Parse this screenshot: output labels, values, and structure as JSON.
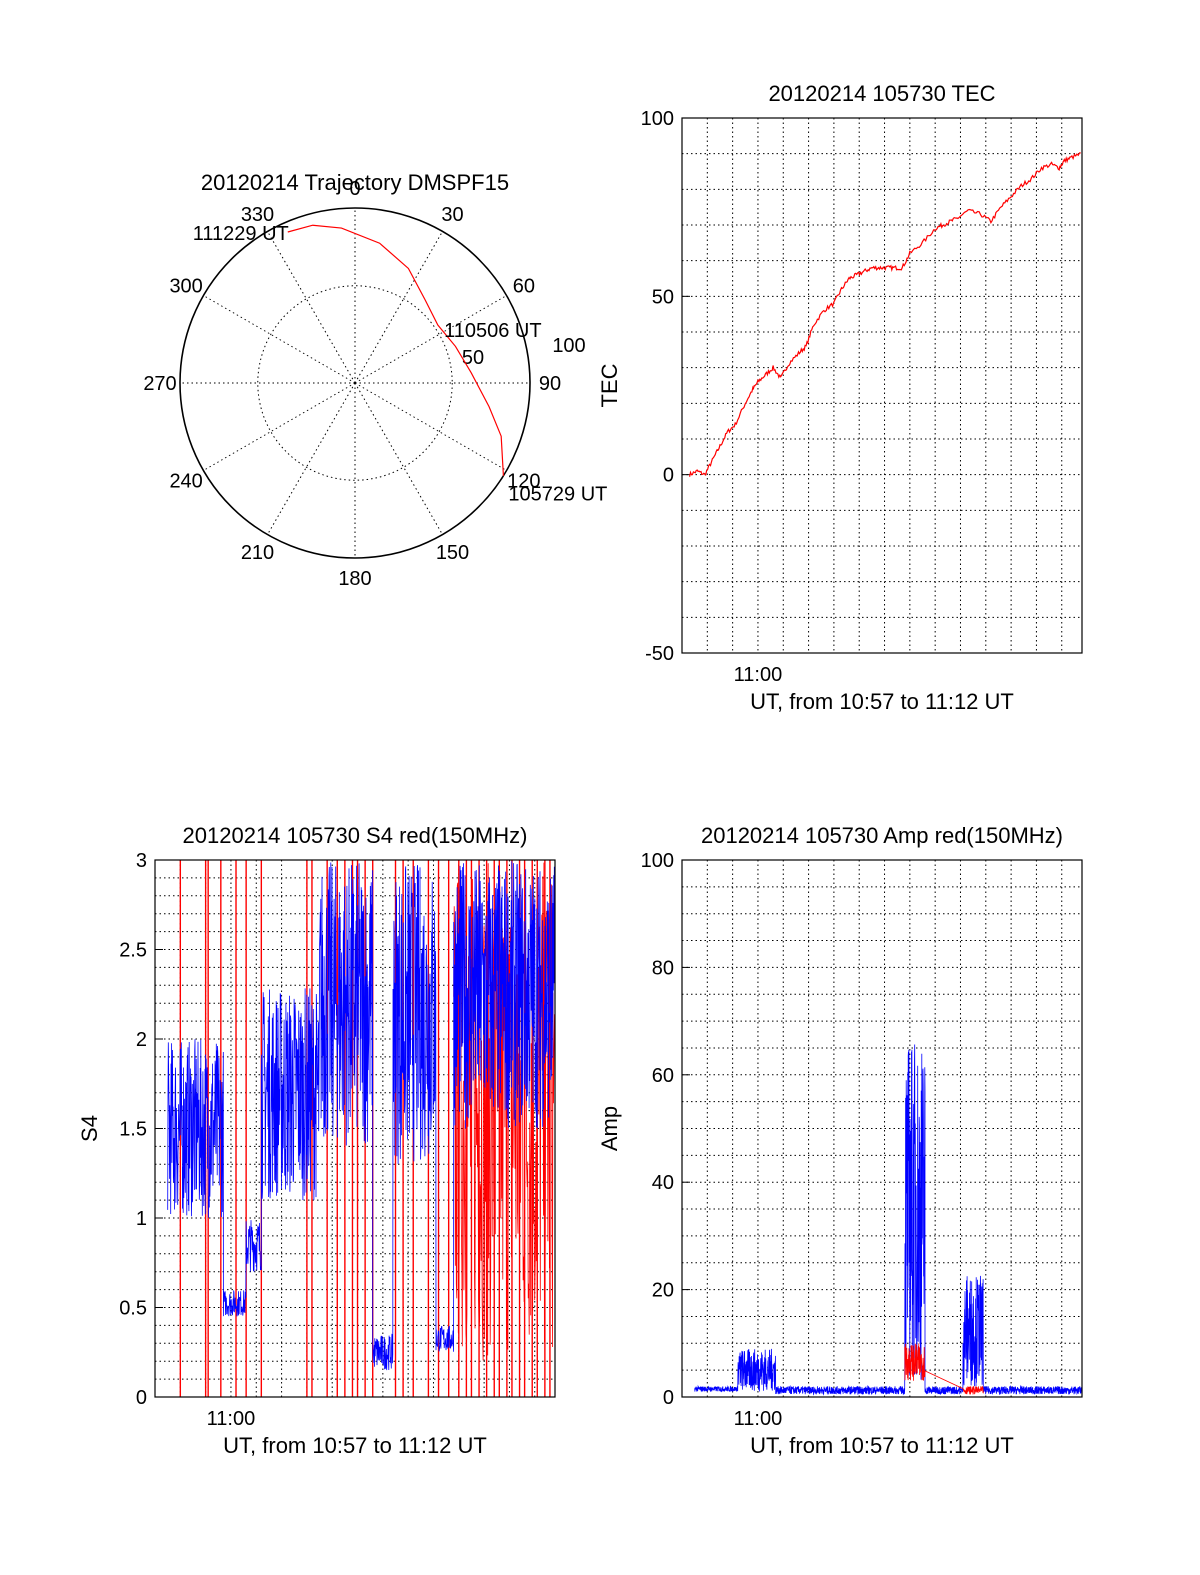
{
  "colors": {
    "red": "#ff0000",
    "blue": "#0000ff",
    "axis": "#000000"
  },
  "chart_data": [
    {
      "type": "polar",
      "title": "20120214 Trajectory DMSPF15",
      "azimuth_labels": [
        "0",
        "30",
        "60",
        "90",
        "120",
        "150",
        "180",
        "210",
        "240",
        "270",
        "300",
        "330"
      ],
      "radius_labels": [
        "50",
        "100"
      ],
      "trajectory": {
        "color": "red",
        "points": [
          {
            "az": 122,
            "r": 90
          },
          {
            "az": 110,
            "r": 80
          },
          {
            "az": 100,
            "r": 70
          },
          {
            "az": 85,
            "r": 60
          },
          {
            "az": 70,
            "r": 55
          },
          {
            "az": 55,
            "r": 52
          },
          {
            "az": 40,
            "r": 56
          },
          {
            "az": 25,
            "r": 65
          },
          {
            "az": 10,
            "r": 73
          },
          {
            "az": 355,
            "r": 80
          },
          {
            "az": 345,
            "r": 84
          },
          {
            "az": 336,
            "r": 85
          }
        ],
        "labels": [
          {
            "text": "111229 UT",
            "az": 336,
            "r": 85
          },
          {
            "text": "110506 UT",
            "az": 55,
            "r": 52
          },
          {
            "text": "105729 UT",
            "az": 122,
            "r": 90
          }
        ]
      }
    },
    {
      "type": "line",
      "title": "20120214 105730 TEC",
      "ylabel": "TEC",
      "xlabel": "UT, from 10:57 to 11:12 UT",
      "x_tick_label": "11:00",
      "xlim": [
        0,
        15.8
      ],
      "ylim": [
        -50,
        100
      ],
      "y_ticks": [
        "-50",
        "0",
        "50",
        "100"
      ],
      "series": [
        {
          "color": "red",
          "x": [
            0.3,
            0.6,
            0.9,
            1.2,
            1.5,
            1.8,
            2.1,
            2.5,
            2.8,
            3.0,
            3.3,
            3.6,
            3.9,
            4.2,
            4.6,
            4.9,
            5.2,
            5.6,
            6.0,
            6.3,
            6.6,
            6.9,
            7.2,
            7.5,
            7.8,
            8.1,
            8.4,
            8.7,
            9.0,
            9.5,
            10.0,
            10.3,
            10.6,
            10.9,
            11.3,
            11.8,
            12.2,
            12.6,
            13.0,
            13.4,
            13.8,
            14.2,
            14.6,
            14.9,
            15.1,
            15.4,
            15.8
          ],
          "y": [
            0,
            1,
            0,
            4,
            8,
            12,
            14,
            20,
            24,
            26,
            28,
            30,
            27,
            31,
            34,
            36,
            42,
            46,
            48,
            52,
            55,
            56,
            57,
            58,
            58,
            58,
            58,
            58,
            62,
            65,
            69,
            70,
            71,
            72,
            74,
            73,
            71,
            75,
            78,
            81,
            83,
            86,
            87,
            86,
            88,
            89,
            90
          ]
        }
      ]
    },
    {
      "type": "line",
      "title": "20120214 105730 S4 red(150MHz)",
      "ylabel": "S4",
      "xlabel": "UT, from 10:57 to 11:12 UT",
      "x_tick_label": "11:00",
      "xlim": [
        0,
        15.8
      ],
      "ylim": [
        0,
        3
      ],
      "y_ticks": [
        "0",
        "0.5",
        "1",
        "1.5",
        "2",
        "2.5",
        "3"
      ],
      "series": [
        {
          "name": "",
          "color": "blue",
          "segments": [
            {
              "x0": 0.5,
              "x1": 2.7,
              "low": 1.0,
              "high": 2.0
            },
            {
              "x0": 2.7,
              "x1": 3.6,
              "low": 0.45,
              "high": 0.6
            },
            {
              "x0": 3.6,
              "x1": 4.2,
              "low": 0.7,
              "high": 1.0
            },
            {
              "x0": 4.2,
              "x1": 6.5,
              "low": 1.1,
              "high": 2.3
            },
            {
              "x0": 6.5,
              "x1": 8.6,
              "low": 1.4,
              "high": 3.0
            },
            {
              "x0": 8.6,
              "x1": 9.4,
              "low": 0.15,
              "high": 0.35
            },
            {
              "x0": 9.4,
              "x1": 11.1,
              "low": 1.3,
              "high": 3.0
            },
            {
              "x0": 11.1,
              "x1": 11.8,
              "low": 0.25,
              "high": 0.4
            },
            {
              "x0": 11.8,
              "x1": 15.8,
              "low": 1.5,
              "high": 3.0
            }
          ]
        },
        {
          "name": "",
          "color": "red",
          "spikes_x": [
            1.0,
            2.0,
            2.1,
            2.6,
            3.2,
            3.6,
            4.2,
            6.0,
            6.2,
            6.8,
            7.2,
            7.5,
            7.8,
            8.0,
            8.3,
            8.6,
            9.5,
            9.8,
            10.2,
            10.8,
            11.2,
            11.6,
            12.0,
            12.3,
            12.5,
            12.8,
            13.1,
            13.4,
            13.6,
            13.9,
            14.1,
            14.4,
            14.6,
            14.9,
            15.1,
            15.4,
            15.6
          ]
        }
      ]
    },
    {
      "type": "line",
      "title": "20120214 105730 Amp red(150MHz)",
      "ylabel": "Amp",
      "xlabel": "UT, from 10:57 to 11:12 UT",
      "x_tick_label": "11:00",
      "xlim": [
        0,
        15.8
      ],
      "ylim": [
        0,
        100
      ],
      "y_ticks": [
        "0",
        "20",
        "40",
        "60",
        "80",
        "100"
      ],
      "series": [
        {
          "color": "blue",
          "segments": [
            {
              "x0": 0.5,
              "x1": 2.2,
              "low": 1,
              "high": 2
            },
            {
              "x0": 2.2,
              "x1": 3.7,
              "low": 1,
              "high": 9
            },
            {
              "x0": 3.7,
              "x1": 8.8,
              "low": 0.5,
              "high": 2
            },
            {
              "x0": 8.8,
              "x1": 9.6,
              "low": 3,
              "high": 67
            },
            {
              "x0": 9.6,
              "x1": 11.1,
              "low": 0.5,
              "high": 2
            },
            {
              "x0": 11.1,
              "x1": 11.9,
              "low": 2,
              "high": 23
            },
            {
              "x0": 11.9,
              "x1": 15.8,
              "low": 0.5,
              "high": 2
            }
          ]
        },
        {
          "color": "red",
          "segments": [
            {
              "x0": 8.8,
              "x1": 9.6,
              "low": 3,
              "high": 10
            },
            {
              "x0": 11.1,
              "x1": 11.9,
              "low": 0.5,
              "high": 2
            }
          ]
        }
      ]
    }
  ]
}
